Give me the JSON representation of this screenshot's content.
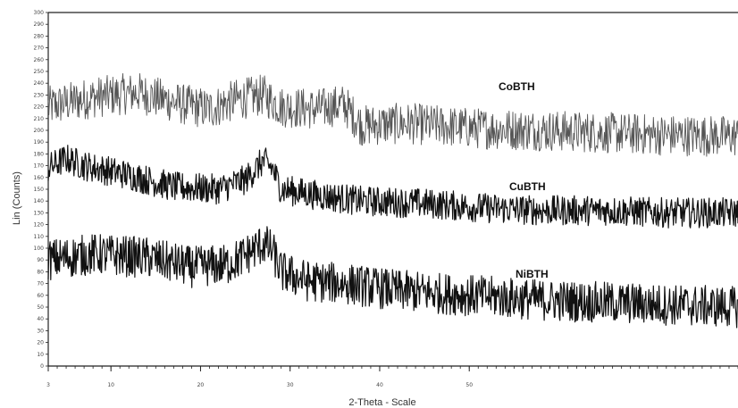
{
  "chart_data": {
    "type": "line",
    "title": "",
    "xlabel": "2-Theta - Scale",
    "ylabel": "Lin (Counts)",
    "xlim": [
      3,
      80
    ],
    "ylim": [
      0,
      300
    ],
    "xticks": [
      3,
      10,
      20,
      30,
      40,
      50
    ],
    "yticks": [
      0,
      10,
      20,
      30,
      40,
      50,
      60,
      70,
      80,
      90,
      100,
      110,
      120,
      130,
      140,
      150,
      160,
      170,
      180,
      190,
      200,
      210,
      220,
      230,
      240,
      250,
      260,
      270,
      280,
      290,
      300
    ],
    "grid": false,
    "series": [
      {
        "name": "CoBTH",
        "color": "#555555",
        "noise": 22,
        "points": [
          [
            3,
            220
          ],
          [
            8,
            228
          ],
          [
            13,
            232
          ],
          [
            18,
            222
          ],
          [
            21,
            218
          ],
          [
            24,
            226
          ],
          [
            27,
            230
          ],
          [
            29,
            220
          ],
          [
            33,
            218
          ],
          [
            36,
            222
          ],
          [
            38,
            204
          ],
          [
            43,
            206
          ],
          [
            50,
            202
          ],
          [
            58,
            200
          ],
          [
            65,
            198
          ],
          [
            72,
            196
          ],
          [
            80,
            195
          ]
        ]
      },
      {
        "name": "CuBTH",
        "color": "#111111",
        "noise": 16,
        "points": [
          [
            3,
            168
          ],
          [
            5,
            176
          ],
          [
            7,
            170
          ],
          [
            12,
            162
          ],
          [
            17,
            152
          ],
          [
            22,
            150
          ],
          [
            25,
            158
          ],
          [
            27,
            174
          ],
          [
            28,
            168
          ],
          [
            29,
            150
          ],
          [
            33,
            145
          ],
          [
            38,
            140
          ],
          [
            45,
            138
          ],
          [
            52,
            134
          ],
          [
            58,
            132
          ],
          [
            65,
            132
          ],
          [
            72,
            130
          ],
          [
            80,
            130
          ]
        ]
      },
      {
        "name": "NiBTH",
        "color": "#111111",
        "noise": 22,
        "points": [
          [
            3,
            90
          ],
          [
            8,
            95
          ],
          [
            14,
            92
          ],
          [
            19,
            84
          ],
          [
            23,
            86
          ],
          [
            25,
            94
          ],
          [
            27,
            104
          ],
          [
            28,
            98
          ],
          [
            29,
            80
          ],
          [
            32,
            72
          ],
          [
            36,
            70
          ],
          [
            42,
            64
          ],
          [
            50,
            60
          ],
          [
            58,
            56
          ],
          [
            65,
            54
          ],
          [
            72,
            52
          ],
          [
            80,
            50
          ]
        ]
      }
    ]
  }
}
